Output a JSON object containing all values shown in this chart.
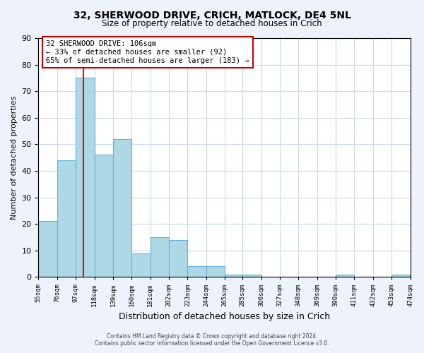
{
  "title1": "32, SHERWOOD DRIVE, CRICH, MATLOCK, DE4 5NL",
  "title2": "Size of property relative to detached houses in Crich",
  "xlabel": "Distribution of detached houses by size in Crich",
  "ylabel": "Number of detached properties",
  "bar_edges": [
    55,
    76,
    97,
    118,
    139,
    160,
    181,
    202,
    223,
    244,
    265,
    285,
    306,
    327,
    348,
    369,
    390,
    411,
    432,
    453,
    474
  ],
  "bar_heights": [
    21,
    44,
    75,
    46,
    52,
    9,
    15,
    14,
    4,
    4,
    1,
    1,
    0,
    0,
    0,
    0,
    1,
    0,
    0,
    1
  ],
  "bar_color": "#add8e6",
  "bar_edge_color": "#6ab0d4",
  "property_line_x": 106,
  "property_line_color": "red",
  "annotation_line1": "32 SHERWOOD DRIVE: 106sqm",
  "annotation_line2": "← 33% of detached houses are smaller (92)",
  "annotation_line3": "65% of semi-detached houses are larger (183) →",
  "tick_labels": [
    "55sqm",
    "76sqm",
    "97sqm",
    "118sqm",
    "139sqm",
    "160sqm",
    "181sqm",
    "202sqm",
    "223sqm",
    "244sqm",
    "265sqm",
    "285sqm",
    "306sqm",
    "327sqm",
    "348sqm",
    "369sqm",
    "390sqm",
    "411sqm",
    "432sqm",
    "453sqm",
    "474sqm"
  ],
  "ylim": [
    0,
    90
  ],
  "yticks": [
    0,
    10,
    20,
    30,
    40,
    50,
    60,
    70,
    80,
    90
  ],
  "footer1": "Contains HM Land Registry data © Crown copyright and database right 2024.",
  "footer2": "Contains public sector information licensed under the Open Government Licence v3.0.",
  "bg_color": "#eef2fb",
  "plot_bg_color": "#ffffff"
}
